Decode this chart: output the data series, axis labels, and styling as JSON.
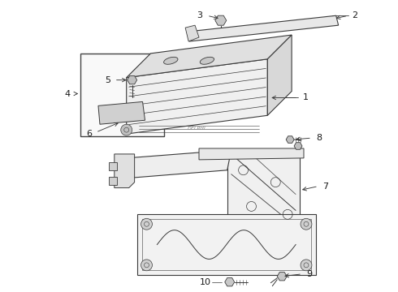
{
  "background_color": "#ffffff",
  "line_color": "#3a3a3a",
  "label_color": "#1a1a1a",
  "figsize": [
    4.9,
    3.6
  ],
  "dpi": 100,
  "label_fs": 8.0,
  "arrow_lw": 0.7,
  "draw_lw": 0.8
}
